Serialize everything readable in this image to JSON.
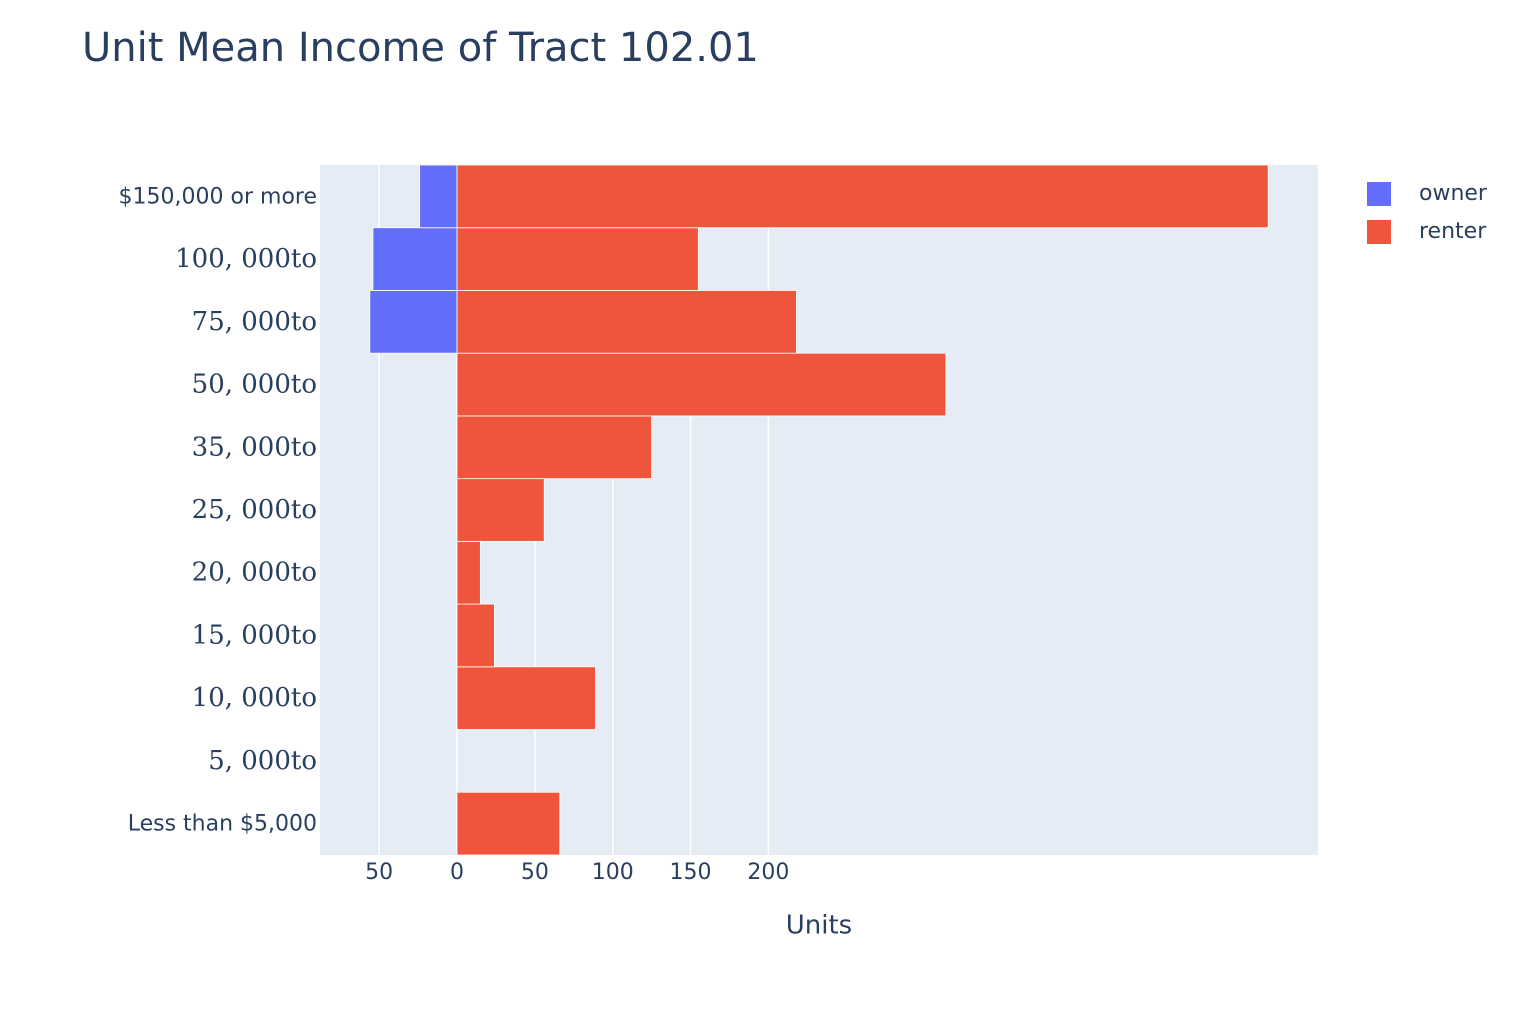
{
  "chart_data": {
    "type": "bar",
    "orientation": "horizontal",
    "barmode": "overlay",
    "title": "Unit Mean Income of Tract 102.01",
    "x_label": "Units",
    "categories": [
      "Less than $5,000",
      "5, 000to",
      "10, 000to",
      "15, 000to",
      "20, 000to",
      "25, 000to",
      "35, 000to",
      "50, 000to",
      "75, 000to",
      "100, 000to",
      "$150,000 or more"
    ],
    "series": [
      {
        "name": "owner",
        "color": "#636efa",
        "values": [
          0,
          0,
          0,
          0,
          0,
          0,
          0,
          0,
          -56,
          -54,
          -24
        ]
      },
      {
        "name": "renter",
        "color": "#ef553b",
        "values": [
          66,
          0,
          89,
          24,
          15,
          56,
          125,
          314,
          218,
          155,
          521
        ]
      }
    ],
    "xlim": [
      -88,
      553
    ],
    "xticks": [
      {
        "value": -50,
        "label": "50"
      },
      0,
      50,
      100,
      150,
      200
    ],
    "grid": true,
    "legend": "top-right"
  }
}
